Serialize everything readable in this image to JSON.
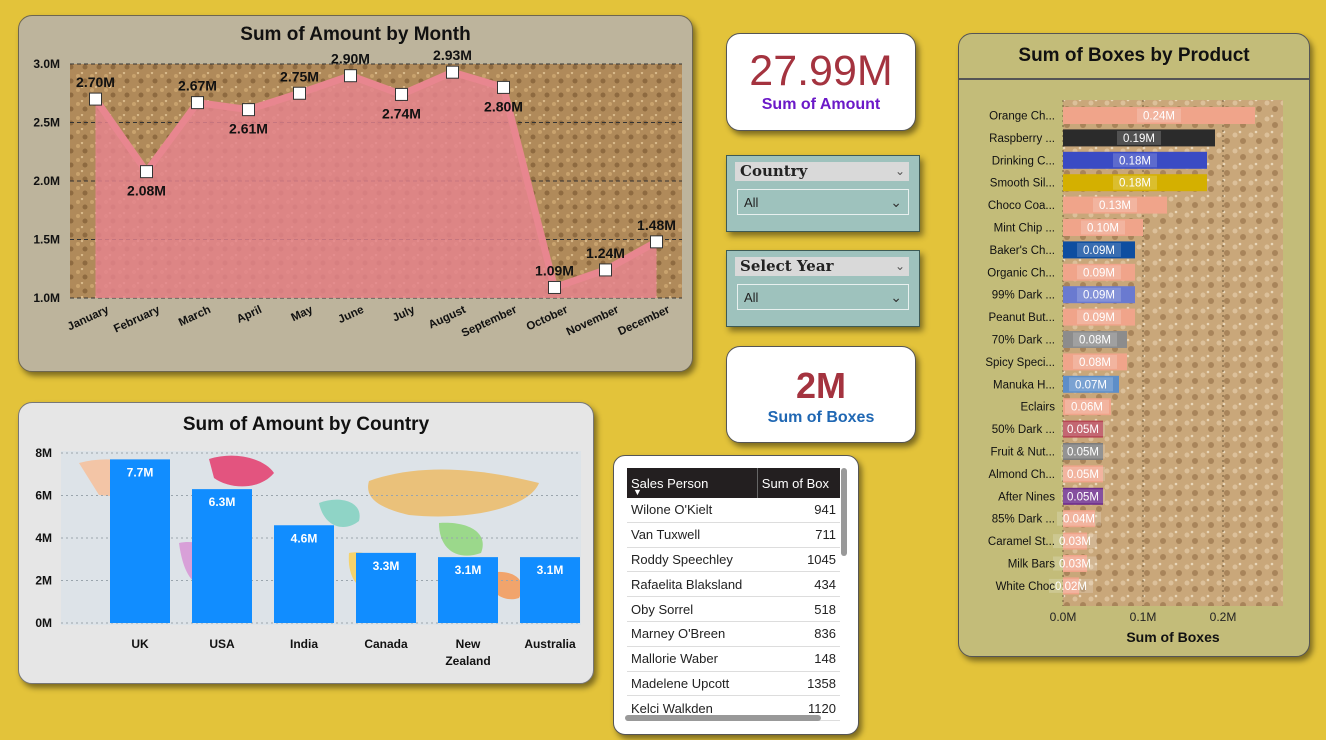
{
  "month_chart": {
    "title": "Sum of Amount by Month",
    "y_ticks": [
      "3.0M",
      "2.5M",
      "2.0M",
      "1.5M",
      "1.0M"
    ],
    "colors": {
      "area": "#e6848f",
      "marker": "#ffffff"
    }
  },
  "country_chart": {
    "title": "Sum of Amount by Country",
    "y_ticks": [
      "8M",
      "6M",
      "4M",
      "2M",
      "0M"
    ],
    "colors": {
      "bar": "#118dff"
    }
  },
  "product_chart": {
    "title": "Sum of Boxes by Product",
    "x_ticks": [
      "0.0M",
      "0.1M",
      "0.2M"
    ],
    "xlabel": "Sum of Boxes"
  },
  "kpis": {
    "amount_value": "27.99M",
    "amount_label": "Sum of Amount",
    "boxes_value": "2M",
    "boxes_label": "Sum of Boxes"
  },
  "slicers": {
    "country_title": "Country",
    "country_value": "All",
    "year_title": "Select Year",
    "year_value": "All"
  },
  "table": {
    "headers": [
      "Sales Person",
      "Sum of Box"
    ],
    "rows": [
      [
        "Wilone O'Kielt",
        "941"
      ],
      [
        "Van Tuxwell",
        "711"
      ],
      [
        "Roddy Speechley",
        "1045"
      ],
      [
        "Rafaelita Blaksland",
        "434"
      ],
      [
        "Oby Sorrel",
        "518"
      ],
      [
        "Marney O'Breen",
        "836"
      ],
      [
        "Mallorie Waber",
        "148"
      ],
      [
        "Madelene Upcott",
        "1358"
      ],
      [
        "Kelci Walkden",
        "1120"
      ]
    ]
  },
  "chart_data": [
    {
      "type": "area",
      "title": "Sum of Amount by Month",
      "xlabel": "",
      "ylabel": "",
      "x": [
        "January",
        "February",
        "March",
        "April",
        "May",
        "June",
        "July",
        "August",
        "September",
        "October",
        "November",
        "December"
      ],
      "values": [
        2.7,
        2.08,
        2.67,
        2.61,
        2.75,
        2.9,
        2.74,
        2.93,
        2.8,
        1.09,
        1.24,
        1.48
      ],
      "labels": [
        "2.70M",
        "2.08M",
        "2.67M",
        "2.61M",
        "2.75M",
        "2.90M",
        "2.74M",
        "2.93M",
        "2.80M",
        "1.09M",
        "1.24M",
        "1.48M"
      ],
      "unit": "M",
      "ylim": [
        1.0,
        3.0
      ],
      "grid": true
    },
    {
      "type": "bar",
      "title": "Sum of Amount by Country",
      "xlabel": "",
      "ylabel": "",
      "categories": [
        "UK",
        "USA",
        "India",
        "Canada",
        "New Zealand",
        "Australia"
      ],
      "values": [
        7.7,
        6.3,
        4.6,
        3.3,
        3.1,
        3.1
      ],
      "labels": [
        "7.7M",
        "6.3M",
        "4.6M",
        "3.3M",
        "3.1M",
        "3.1M"
      ],
      "unit": "M",
      "ylim": [
        0,
        8
      ],
      "grid": true
    },
    {
      "type": "bar",
      "orientation": "horizontal",
      "title": "Sum of Boxes by Product",
      "xlabel": "Sum of Boxes",
      "ylabel": "",
      "categories": [
        "Orange Ch...",
        "Raspberry ...",
        "Drinking C...",
        "Smooth Sil...",
        "Choco Coa...",
        "Mint Chip ...",
        "Baker's Ch...",
        "Organic Ch...",
        "99% Dark ...",
        "Peanut But...",
        "70% Dark ...",
        "Spicy Speci...",
        "Manuka H...",
        "Eclairs",
        "50% Dark ...",
        "Fruit & Nut...",
        "Almond Ch...",
        "After Nines",
        "85% Dark ...",
        "Caramel St...",
        "Milk Bars",
        "White Choc"
      ],
      "values": [
        0.24,
        0.19,
        0.18,
        0.18,
        0.13,
        0.1,
        0.09,
        0.09,
        0.09,
        0.09,
        0.08,
        0.08,
        0.07,
        0.06,
        0.05,
        0.05,
        0.05,
        0.05,
        0.04,
        0.03,
        0.03,
        0.02
      ],
      "labels": [
        "0.24M",
        "0.19M",
        "0.18M",
        "0.18M",
        "0.13M",
        "0.10M",
        "0.09M",
        "0.09M",
        "0.09M",
        "0.09M",
        "0.08M",
        "0.08M",
        "0.07M",
        "0.06M",
        "0.05M",
        "0.05M",
        "0.05M",
        "0.05M",
        "0.04M",
        "0.03M",
        "0.03M",
        "0.02M"
      ],
      "colors": [
        "#f0a48a",
        "#2b2b2b",
        "#3a4bc4",
        "#d4b000",
        "#f0a48a",
        "#f0a48a",
        "#0e4ea0",
        "#f0a48a",
        "#6a7ad0",
        "#f0a48a",
        "#8c8c8c",
        "#f0a48a",
        "#5d8ec8",
        "#f0a48a",
        "#b64654",
        "#7c7c7c",
        "#f0a48a",
        "#6b2a8a",
        "#f0a48a",
        "#f0a48a",
        "#f0a48a",
        "#f0a48a"
      ],
      "unit": "M",
      "xlim": [
        0,
        0.25
      ],
      "grid": true
    }
  ]
}
